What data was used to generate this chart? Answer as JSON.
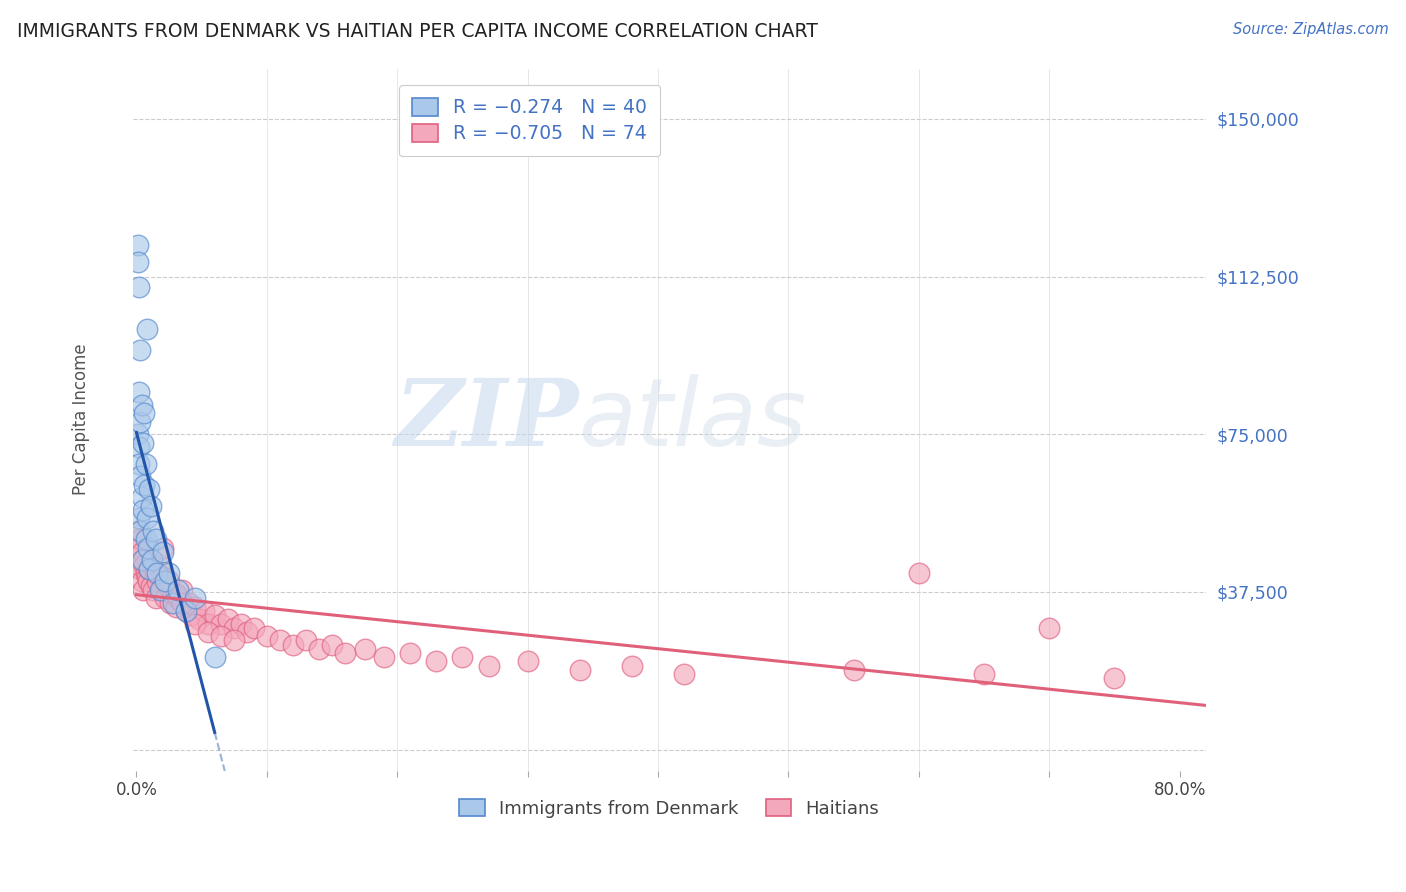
{
  "title": "IMMIGRANTS FROM DENMARK VS HAITIAN PER CAPITA INCOME CORRELATION CHART",
  "source": "Source: ZipAtlas.com",
  "ylabel": "Per Capita Income",
  "watermark_zip": "ZIP",
  "watermark_atlas": "atlas",
  "legend_top": [
    {
      "label": "R = −0.274   N = 40",
      "color": "#aac8ea"
    },
    {
      "label": "R = −0.705   N = 74",
      "color": "#f4a8bc"
    }
  ],
  "legend_bottom": [
    "Immigrants from Denmark",
    "Haitians"
  ],
  "yticks": [
    0,
    37500,
    75000,
    112500,
    150000
  ],
  "ytick_labels": [
    "",
    "$37,500",
    "$75,000",
    "$112,500",
    "$150,000"
  ],
  "ylim": [
    -5000,
    162000
  ],
  "xlim": [
    -0.003,
    0.82
  ],
  "denmark_color": "#aac8ea",
  "haiti_color": "#f4a8bc",
  "denmark_edge": "#5588cc",
  "haiti_edge": "#e06080",
  "denmark_line_color": "#2255aa",
  "haiti_line_color": "#e0607a",
  "grid_color": "#cccccc",
  "background_color": "#ffffff",
  "title_color": "#222222",
  "source_color": "#4472c4",
  "axis_label_color": "#555555",
  "right_tick_color": "#4472c4",
  "denmark_x": [
    0.001,
    0.001,
    0.001,
    0.002,
    0.002,
    0.002,
    0.002,
    0.002,
    0.003,
    0.003,
    0.003,
    0.003,
    0.004,
    0.004,
    0.004,
    0.005,
    0.005,
    0.006,
    0.006,
    0.007,
    0.007,
    0.008,
    0.008,
    0.009,
    0.01,
    0.01,
    0.011,
    0.012,
    0.013,
    0.015,
    0.016,
    0.018,
    0.02,
    0.022,
    0.025,
    0.028,
    0.032,
    0.038,
    0.045,
    0.06
  ],
  "denmark_y": [
    120000,
    116000,
    75000,
    110000,
    85000,
    72000,
    68000,
    55000,
    95000,
    78000,
    65000,
    52000,
    82000,
    60000,
    45000,
    73000,
    57000,
    80000,
    63000,
    68000,
    50000,
    100000,
    55000,
    48000,
    62000,
    43000,
    58000,
    45000,
    52000,
    50000,
    42000,
    38000,
    47000,
    40000,
    42000,
    35000,
    38000,
    33000,
    36000,
    22000
  ],
  "haiti_x": [
    0.001,
    0.002,
    0.002,
    0.003,
    0.003,
    0.004,
    0.004,
    0.005,
    0.005,
    0.006,
    0.007,
    0.008,
    0.009,
    0.01,
    0.011,
    0.012,
    0.013,
    0.014,
    0.015,
    0.016,
    0.018,
    0.019,
    0.02,
    0.022,
    0.024,
    0.026,
    0.028,
    0.03,
    0.032,
    0.035,
    0.038,
    0.04,
    0.042,
    0.045,
    0.048,
    0.052,
    0.055,
    0.06,
    0.065,
    0.07,
    0.075,
    0.08,
    0.085,
    0.09,
    0.1,
    0.11,
    0.12,
    0.13,
    0.14,
    0.15,
    0.16,
    0.175,
    0.19,
    0.21,
    0.23,
    0.25,
    0.27,
    0.3,
    0.34,
    0.38,
    0.42,
    0.55,
    0.6,
    0.65,
    0.7,
    0.75,
    0.02,
    0.025,
    0.03,
    0.035,
    0.045,
    0.055,
    0.065,
    0.075
  ],
  "haiti_y": [
    52000,
    48000,
    44000,
    50000,
    43000,
    47000,
    40000,
    45000,
    38000,
    44000,
    42000,
    41000,
    40000,
    43000,
    39000,
    45000,
    38000,
    42000,
    36000,
    40000,
    44000,
    38000,
    41000,
    36000,
    39000,
    35000,
    37000,
    34000,
    36000,
    38000,
    33000,
    35000,
    32000,
    34000,
    31000,
    33000,
    30000,
    32000,
    30000,
    31000,
    29000,
    30000,
    28000,
    29000,
    27000,
    26000,
    25000,
    26000,
    24000,
    25000,
    23000,
    24000,
    22000,
    23000,
    21000,
    22000,
    20000,
    21000,
    19000,
    20000,
    18000,
    19000,
    42000,
    18000,
    29000,
    17000,
    48000,
    40000,
    37000,
    35000,
    30000,
    28000,
    27000,
    26000
  ]
}
